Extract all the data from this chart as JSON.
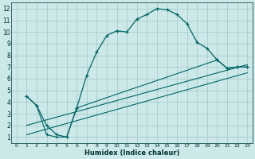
{
  "xlabel": "Humidex (Indice chaleur)",
  "bg_color": "#cce8e8",
  "grid_color": "#aacccc",
  "line_color": "#006666",
  "xlim": [
    -0.5,
    23.5
  ],
  "ylim": [
    0.5,
    12.5
  ],
  "xtick_labels": [
    "0",
    "1",
    "2",
    "3",
    "4",
    "5",
    "6",
    "7",
    "8",
    "9",
    "10",
    "11",
    "12",
    "13",
    "14",
    "15",
    "16",
    "17",
    "18",
    "19",
    "20",
    "21",
    "22",
    "23"
  ],
  "xtick_vals": [
    0,
    1,
    2,
    3,
    4,
    5,
    6,
    7,
    8,
    9,
    10,
    11,
    12,
    13,
    14,
    15,
    16,
    17,
    18,
    19,
    20,
    21,
    22,
    23
  ],
  "ytick_vals": [
    1,
    2,
    3,
    4,
    5,
    6,
    7,
    8,
    9,
    10,
    11,
    12
  ],
  "curve_x": [
    1,
    2,
    3,
    4,
    5,
    6,
    7,
    8,
    9,
    10,
    11,
    12,
    13,
    14,
    15,
    16,
    17,
    18,
    19,
    20,
    21,
    22,
    23
  ],
  "curve_y": [
    4.5,
    3.7,
    2.0,
    1.2,
    1.0,
    3.5,
    6.3,
    8.3,
    9.7,
    10.1,
    10.0,
    11.1,
    11.5,
    12.0,
    11.9,
    11.5,
    10.7,
    9.1,
    8.6,
    7.6,
    6.9,
    7.0,
    7.0
  ],
  "vshape_x": [
    1,
    2,
    3,
    4,
    5,
    6,
    20,
    21,
    22,
    23
  ],
  "vshape_y": [
    4.5,
    3.7,
    1.2,
    1.0,
    1.0,
    3.5,
    7.6,
    6.9,
    7.0,
    7.0
  ],
  "trend1_x": [
    1,
    23
  ],
  "trend1_y": [
    2.0,
    7.2
  ],
  "trend2_x": [
    1,
    23
  ],
  "trend2_y": [
    1.2,
    6.5
  ]
}
